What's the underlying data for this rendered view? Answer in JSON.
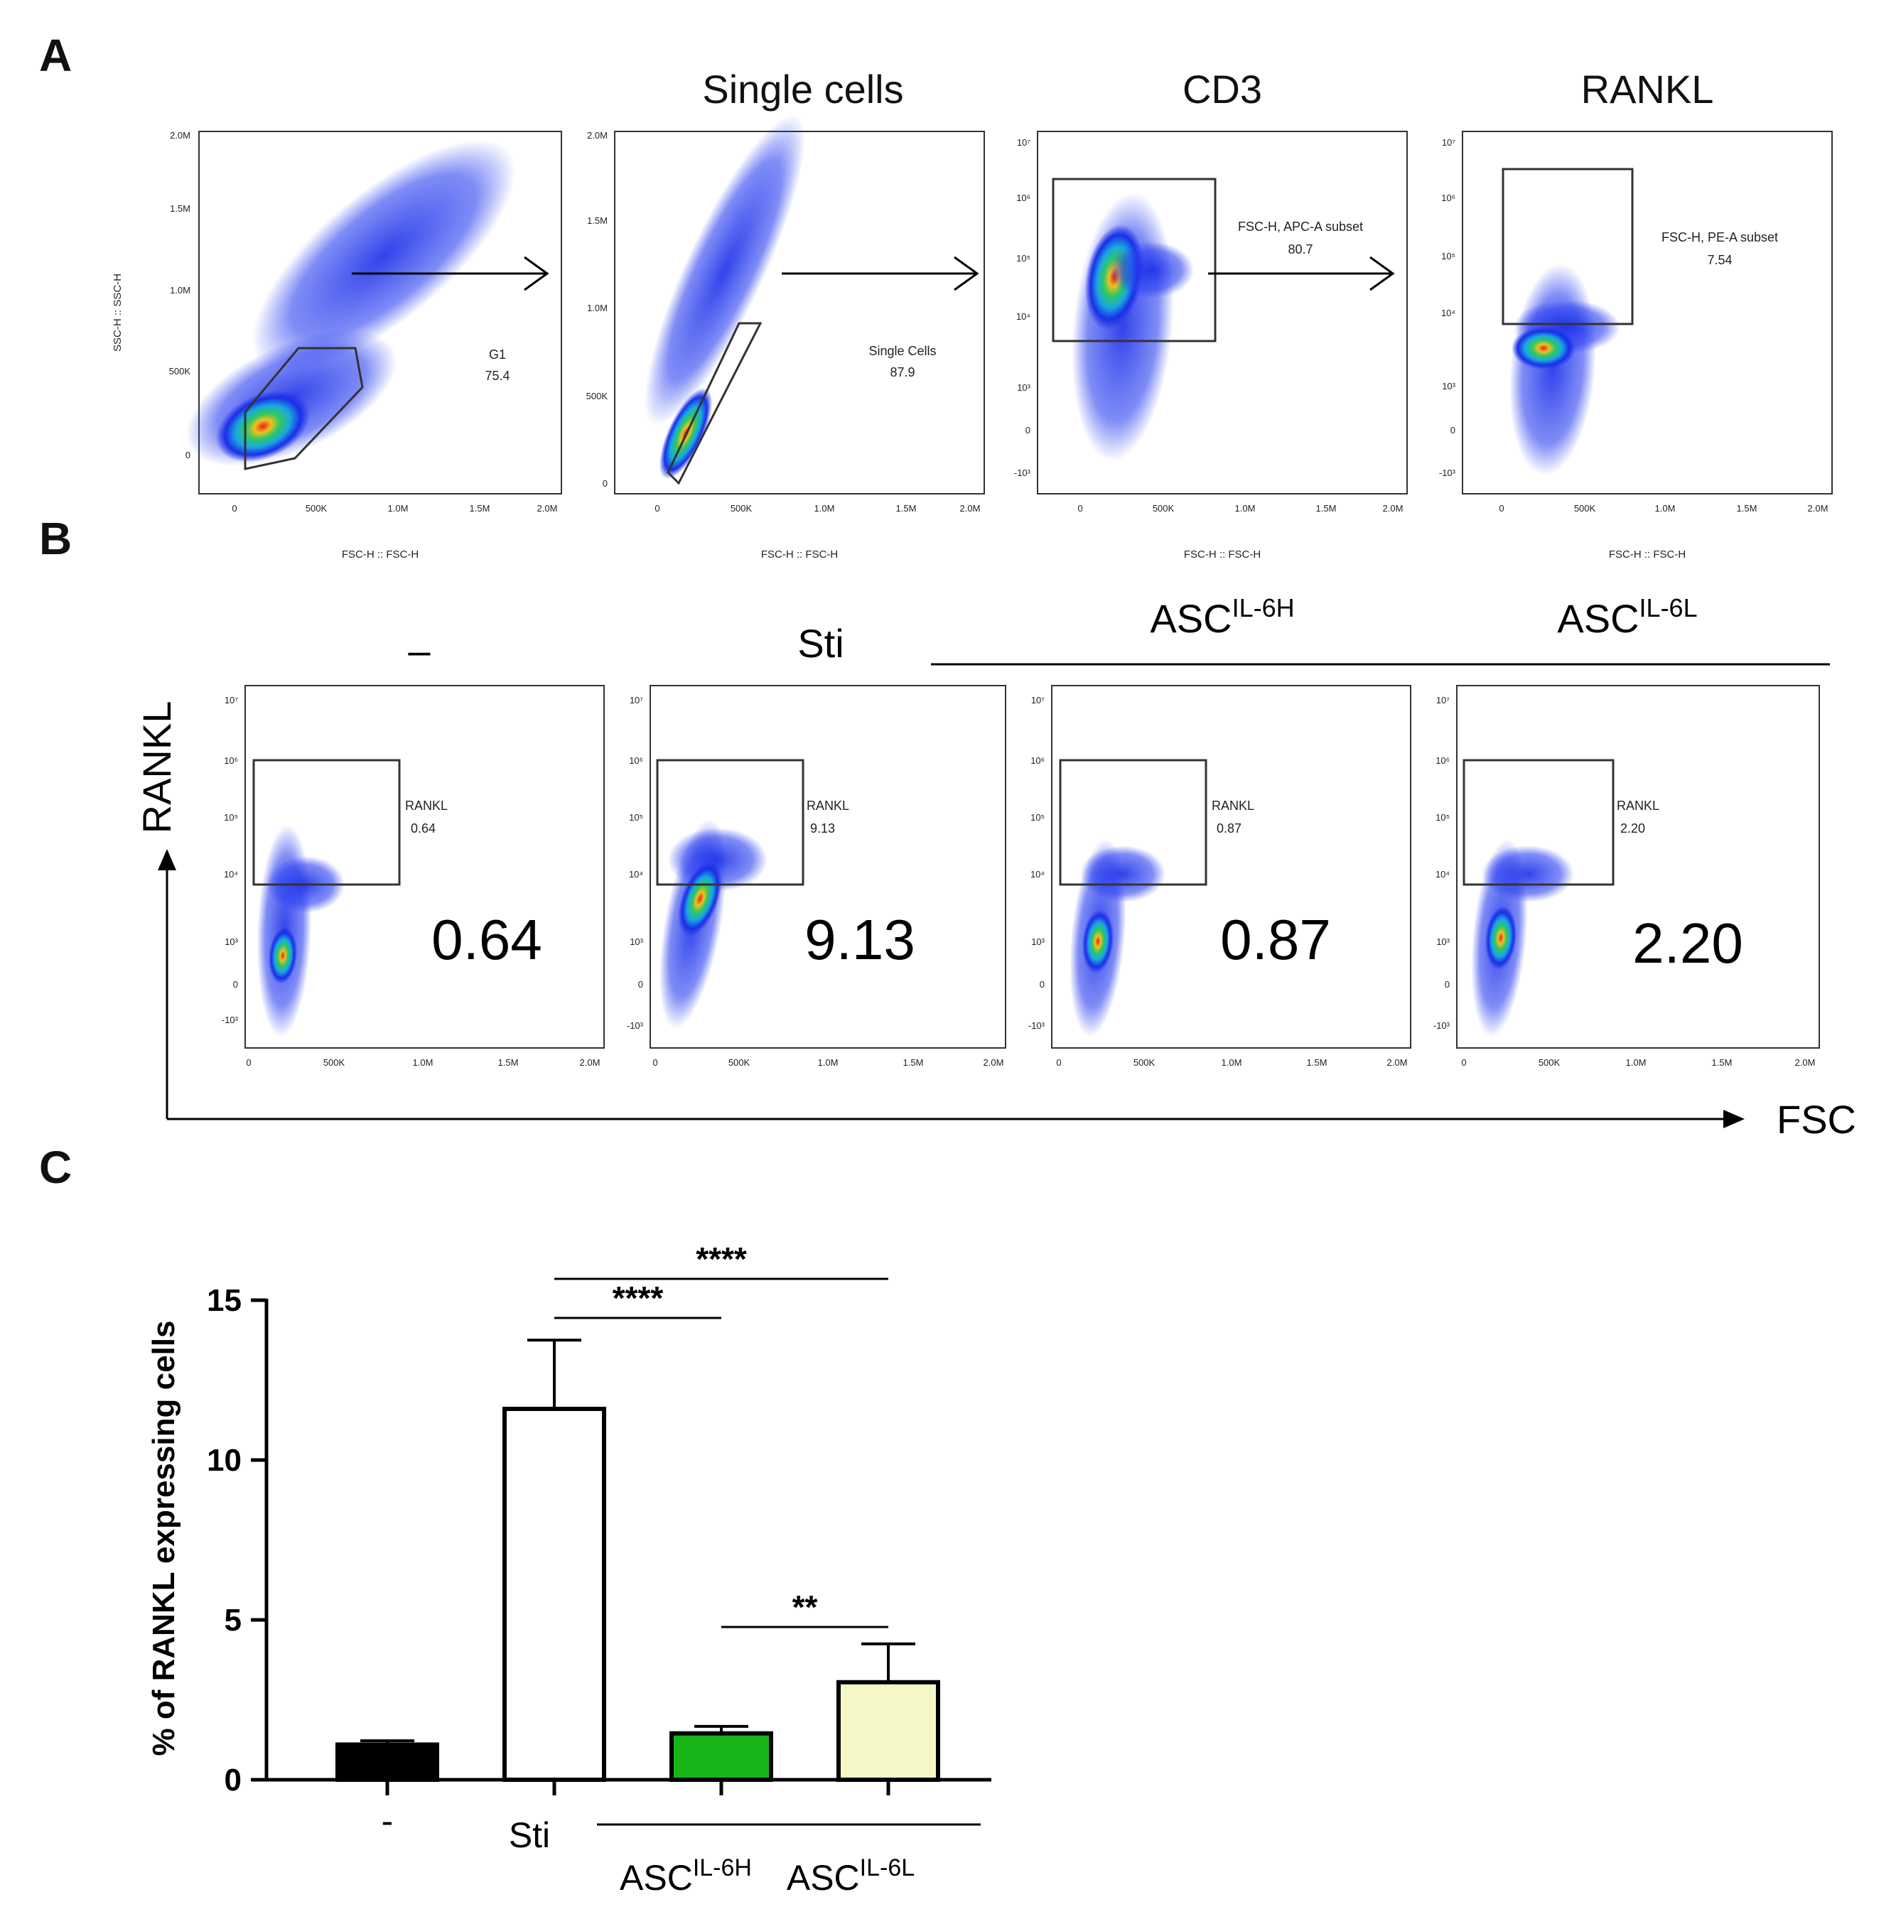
{
  "panels": {
    "a": "A",
    "b": "B",
    "c": "C"
  },
  "panel_a": {
    "plots": [
      {
        "title": "",
        "ylabel": "SSC-H :: SSC-H",
        "xlabel": "FSC-H :: FSC-H",
        "yticks": [
          "0",
          "500K",
          "1.0M",
          "1.5M",
          "2.0M"
        ],
        "xticks": [
          "0",
          "500K",
          "1.0M",
          "1.5M",
          "2.0M"
        ],
        "gate_name": "G1",
        "gate_value": "75.4"
      },
      {
        "title": "Single cells",
        "ylabel": "",
        "xlabel": "FSC-H :: FSC-H",
        "yticks": [
          "0",
          "500K",
          "1.0M",
          "1.5M",
          "2.0M"
        ],
        "xticks": [
          "0",
          "500K",
          "1.0M",
          "1.5M",
          "2.0M"
        ],
        "gate_name": "Single Cells",
        "gate_value": "87.9"
      },
      {
        "title": "CD3",
        "ylabel": "",
        "xlabel": "FSC-H :: FSC-H",
        "yticks": [
          "-10³",
          "0",
          "10³",
          "10⁴",
          "10⁵",
          "10⁶",
          "10⁷"
        ],
        "xticks": [
          "0",
          "500K",
          "1.0M",
          "1.5M",
          "2.0M"
        ],
        "gate_name": "FSC-H, APC-A subset",
        "gate_value": "80.7"
      },
      {
        "title": "RANKL",
        "ylabel": "",
        "xlabel": "FSC-H :: FSC-H",
        "yticks": [
          "-10³",
          "0",
          "10³",
          "10⁴",
          "10⁵",
          "10⁶",
          "10⁷"
        ],
        "xticks": [
          "0",
          "500K",
          "1.0M",
          "1.5M",
          "2.0M"
        ],
        "gate_name": "FSC-H, PE-A subset",
        "gate_value": "7.54"
      }
    ]
  },
  "panel_b": {
    "y_axis": "RANKL",
    "x_axis": "FSC",
    "yticks": [
      "-10³",
      "0",
      "10³",
      "10⁴",
      "10⁵",
      "10⁶",
      "10⁷"
    ],
    "xticks": [
      "0",
      "500K",
      "1.0M",
      "1.5M",
      "2.0M"
    ],
    "conditions": [
      {
        "name": "–",
        "sup": ""
      },
      {
        "name": "Sti",
        "sup": ""
      },
      {
        "name": "ASC",
        "sup": "IL-6H"
      },
      {
        "name": "ASC",
        "sup": "IL-6L"
      }
    ],
    "plots": [
      {
        "gate_name": "RANKL",
        "gate_value": "0.64",
        "big_value": "0.64"
      },
      {
        "gate_name": "RANKL",
        "gate_value": "9.13",
        "big_value": "9.13"
      },
      {
        "gate_name": "RANKL",
        "gate_value": "0.87",
        "big_value": "0.87"
      },
      {
        "gate_name": "RANKL",
        "gate_value": "2.20",
        "big_value": "2.20"
      }
    ]
  },
  "chart_data": {
    "type": "bar",
    "title": "",
    "xlabel": "",
    "ylabel": "% of RANKL expressing cells",
    "ylim": [
      0,
      15
    ],
    "yticks": [
      0,
      5,
      10,
      15
    ],
    "categories": [
      {
        "name": "-",
        "sup": ""
      },
      {
        "name": "Sti",
        "sup": ""
      },
      {
        "name": "ASC",
        "sup": "IL-6H"
      },
      {
        "name": "ASC",
        "sup": "IL-6L"
      }
    ],
    "values": [
      1.1,
      11.6,
      1.45,
      3.05
    ],
    "errors": [
      0.12,
      2.15,
      0.22,
      1.2
    ],
    "colors": [
      "#000000",
      "#ffffff",
      "#18b418",
      "#f5f8c6"
    ],
    "significance": [
      {
        "from": 1,
        "to": 2,
        "label": "****"
      },
      {
        "from": 1,
        "to": 3,
        "label": "****"
      },
      {
        "from": 2,
        "to": 3,
        "label": "**"
      }
    ]
  }
}
